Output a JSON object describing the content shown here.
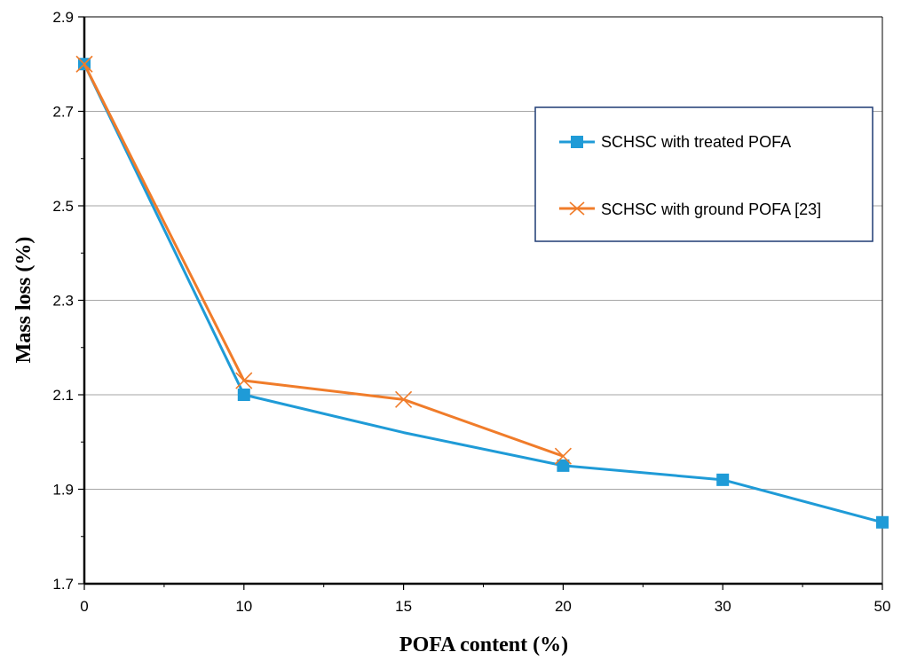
{
  "chart_data": {
    "type": "line",
    "title": "",
    "xlabel": "POFA content (%)",
    "ylabel": "Mass loss (%)",
    "categories": [
      "0",
      "10",
      "15",
      "20",
      "30",
      "50"
    ],
    "ylim": [
      1.7,
      2.9
    ],
    "yticks": [
      "1.7",
      "1.9",
      "2.1",
      "2.3",
      "2.5",
      "2.7",
      "2.9"
    ],
    "grid": true,
    "legend_position": "top-right",
    "series": [
      {
        "name": "SCHSC with treated POFA",
        "marker": "square",
        "color": "#1f9bd7",
        "values": [
          2.8,
          2.1,
          2.02,
          1.95,
          1.92,
          1.83
        ],
        "markers_at": [
          0,
          1,
          3,
          4,
          5
        ]
      },
      {
        "name": "SCHSC with ground POFA [23]",
        "marker": "x",
        "color": "#f07c2a",
        "values": [
          2.8,
          2.13,
          2.09,
          1.97,
          null,
          null
        ],
        "markers_at": [
          0,
          1,
          2,
          3
        ]
      }
    ]
  }
}
